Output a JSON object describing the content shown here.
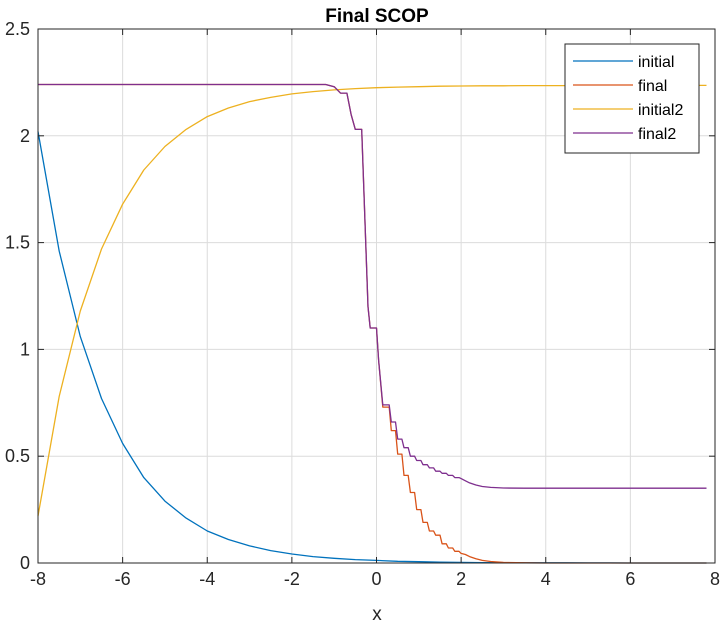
{
  "chart_data": {
    "type": "line",
    "title": "Final SCOP",
    "xlabel": "x",
    "ylabel": "",
    "xlim": [
      -8,
      8
    ],
    "ylim": [
      0,
      2.5
    ],
    "xticks": [
      -8,
      -6,
      -4,
      -2,
      0,
      2,
      4,
      6,
      8
    ],
    "yticks": [
      0,
      0.5,
      1,
      1.5,
      2,
      2.5
    ],
    "xtick_labels": [
      "-8",
      "-6",
      "-4",
      "-2",
      "0",
      "2",
      "4",
      "6",
      "8"
    ],
    "ytick_labels": [
      "0",
      "0.5",
      "1",
      "1.5",
      "2",
      "2.5"
    ],
    "grid": true,
    "legend_position": "top-right",
    "series": [
      {
        "name": "initial",
        "color": "#0072BD",
        "x": [
          -8,
          -7.5,
          -7,
          -6.5,
          -6,
          -5.5,
          -5,
          -4.5,
          -4,
          -3.5,
          -3,
          -2.5,
          -2,
          -1.5,
          -1,
          -0.5,
          0,
          0.5,
          1,
          1.5,
          2,
          2.5,
          3,
          3.5,
          4,
          4.5,
          5,
          5.5,
          6,
          6.5,
          7,
          7.5,
          7.8
        ],
        "y": [
          2.02,
          1.46,
          1.06,
          0.77,
          0.56,
          0.4,
          0.29,
          0.21,
          0.15,
          0.11,
          0.08,
          0.058,
          0.042,
          0.03,
          0.022,
          0.016,
          0.012,
          0.008,
          0.006,
          0.004,
          0.003,
          0.002,
          0.002,
          0.001,
          0.001,
          0.001,
          0.0005,
          0.0003,
          0.0002,
          0.0001,
          0.0001,
          0,
          0
        ]
      },
      {
        "name": "final",
        "color": "#D95319",
        "x": [
          -8,
          -1.2,
          -1.0,
          -0.85,
          -0.8,
          -0.7,
          -0.6,
          -0.5,
          -0.45,
          -0.35,
          -0.2,
          -0.15,
          -0.05,
          0.0,
          0.05,
          0.15,
          0.2,
          0.3,
          0.35,
          0.45,
          0.5,
          0.6,
          0.65,
          0.75,
          0.8,
          0.9,
          0.95,
          1.05,
          1.1,
          1.2,
          1.25,
          1.35,
          1.4,
          1.5,
          1.55,
          1.65,
          1.7,
          1.8,
          1.85,
          1.95,
          2.0,
          2.1,
          2.2,
          2.35,
          2.5,
          2.7,
          3.0,
          3.5,
          4.0,
          5.0,
          6.0,
          7.0,
          7.8
        ],
        "y": [
          2.24,
          2.24,
          2.23,
          2.2,
          2.2,
          2.2,
          2.1,
          2.03,
          2.03,
          2.03,
          1.2,
          1.1,
          1.1,
          1.1,
          0.95,
          0.73,
          0.73,
          0.73,
          0.62,
          0.62,
          0.51,
          0.51,
          0.41,
          0.41,
          0.33,
          0.33,
          0.25,
          0.25,
          0.19,
          0.19,
          0.15,
          0.15,
          0.13,
          0.13,
          0.09,
          0.09,
          0.07,
          0.07,
          0.055,
          0.055,
          0.045,
          0.04,
          0.03,
          0.02,
          0.012,
          0.007,
          0.003,
          0.001,
          0,
          0,
          0,
          0,
          0
        ]
      },
      {
        "name": "initial2",
        "color": "#EDB120",
        "x": [
          -8,
          -7.5,
          -7,
          -6.5,
          -6,
          -5.5,
          -5,
          -4.5,
          -4,
          -3.5,
          -3,
          -2.5,
          -2,
          -1.5,
          -1,
          -0.5,
          0,
          0.5,
          1,
          1.5,
          2,
          2.5,
          3,
          3.5,
          4,
          4.5,
          5,
          5.5,
          6,
          6.5,
          7,
          7.5,
          7.8
        ],
        "y": [
          0.22,
          0.78,
          1.18,
          1.47,
          1.68,
          1.84,
          1.95,
          2.03,
          2.09,
          2.13,
          2.16,
          2.18,
          2.196,
          2.207,
          2.215,
          2.221,
          2.225,
          2.228,
          2.23,
          2.232,
          2.233,
          2.234,
          2.234,
          2.235,
          2.235,
          2.235,
          2.236,
          2.236,
          2.236,
          2.236,
          2.236,
          2.236,
          2.236
        ]
      },
      {
        "name": "final2",
        "color": "#7E2F8E",
        "x": [
          -8,
          -1.2,
          -1.0,
          -0.85,
          -0.8,
          -0.7,
          -0.6,
          -0.5,
          -0.45,
          -0.35,
          -0.2,
          -0.15,
          -0.05,
          0.0,
          0.05,
          0.15,
          0.2,
          0.3,
          0.35,
          0.45,
          0.5,
          0.6,
          0.65,
          0.75,
          0.8,
          0.9,
          0.95,
          1.05,
          1.1,
          1.2,
          1.25,
          1.35,
          1.4,
          1.5,
          1.55,
          1.65,
          1.7,
          1.8,
          1.85,
          1.95,
          2.0,
          2.1,
          2.2,
          2.35,
          2.5,
          2.7,
          3.0,
          3.5,
          4.0,
          5.0,
          6.0,
          7.0,
          7.8
        ],
        "y": [
          2.24,
          2.24,
          2.23,
          2.2,
          2.2,
          2.2,
          2.1,
          2.03,
          2.03,
          2.03,
          1.2,
          1.1,
          1.1,
          1.1,
          0.95,
          0.74,
          0.74,
          0.74,
          0.66,
          0.66,
          0.58,
          0.58,
          0.54,
          0.54,
          0.5,
          0.5,
          0.48,
          0.48,
          0.46,
          0.46,
          0.445,
          0.445,
          0.43,
          0.43,
          0.42,
          0.42,
          0.41,
          0.41,
          0.4,
          0.4,
          0.395,
          0.385,
          0.375,
          0.365,
          0.358,
          0.354,
          0.351,
          0.35,
          0.35,
          0.35,
          0.35,
          0.35,
          0.35
        ]
      }
    ]
  }
}
